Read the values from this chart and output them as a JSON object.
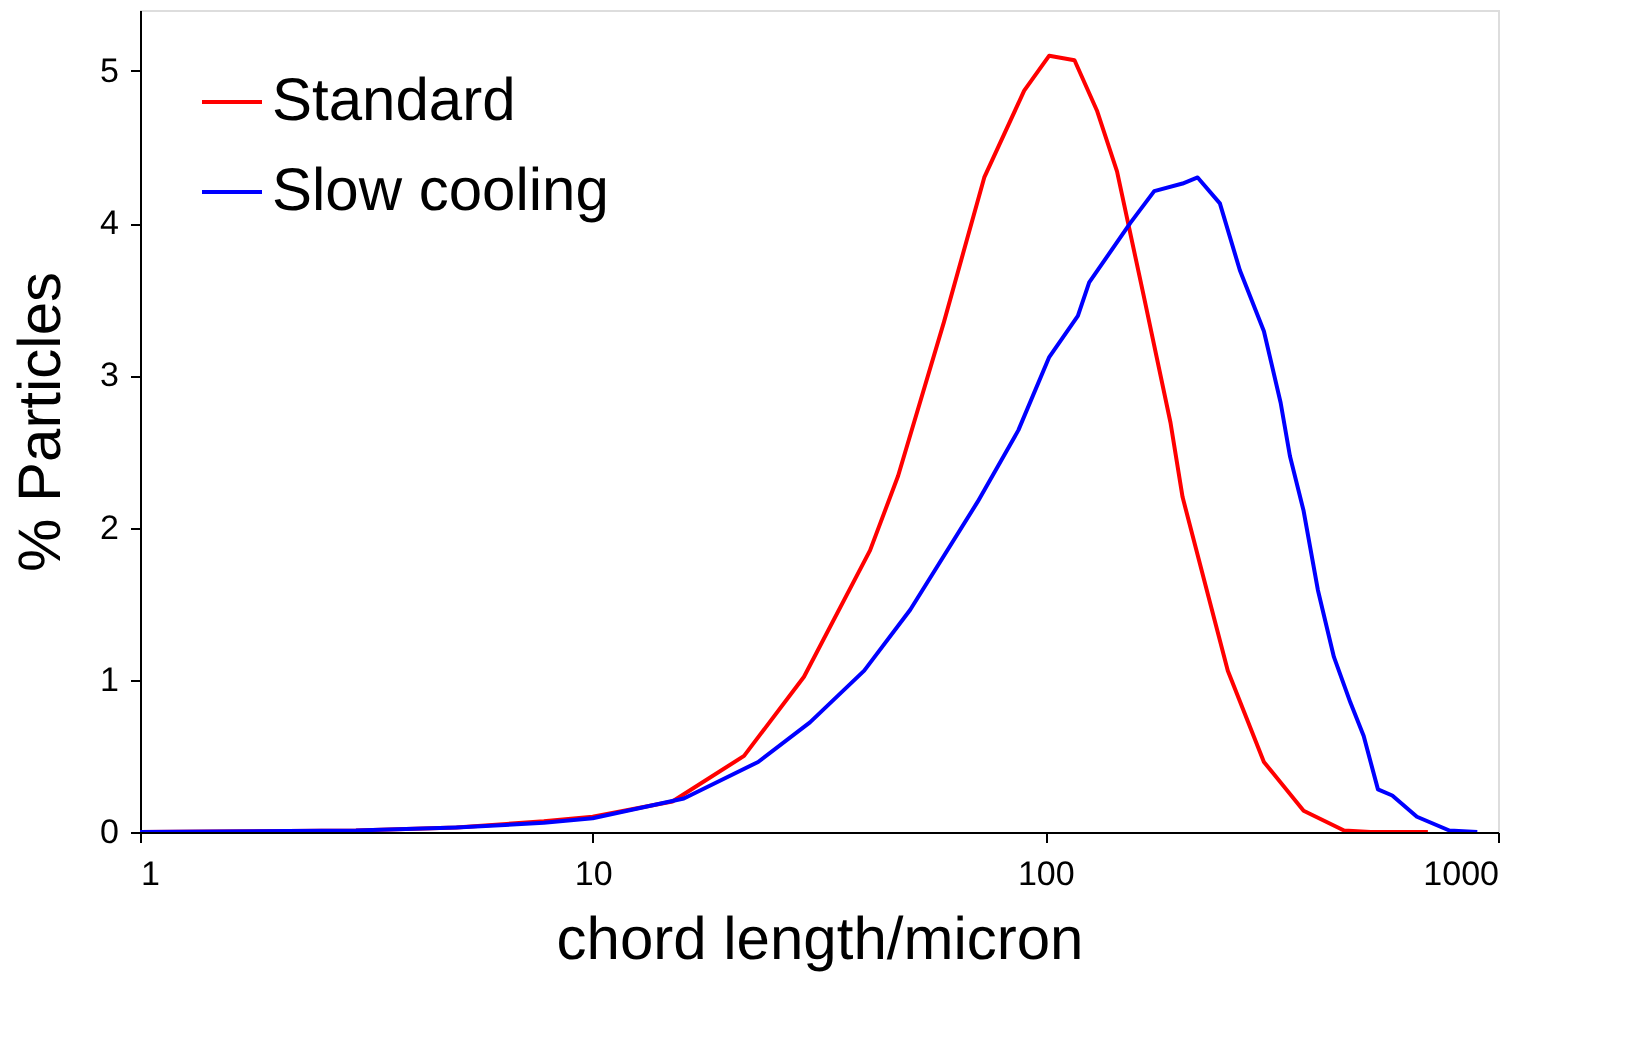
{
  "chart_data": {
    "type": "line",
    "xlabel": "chord length/micron",
    "ylabel": "% Particles",
    "log": "x",
    "xlim": [
      1,
      1000
    ],
    "xticks": [
      1,
      10,
      100,
      1000
    ],
    "ylim": [
      0,
      5.4
    ],
    "yticks": [
      0,
      1,
      2,
      3,
      4,
      5
    ],
    "grid": false,
    "legend": "top left",
    "marker": "none",
    "line_style": "solid",
    "series": [
      {
        "name": "Standard",
        "color": "#ff0000",
        "x": [
          1,
          3,
          5,
          7.8,
          10,
          15,
          21.6,
          29.3,
          41,
          47.3,
          59.7,
          73.3,
          89.8,
          102,
          116,
          130,
          144,
          165,
          189,
          201,
          231,
          253,
          304,
          372,
          457,
          523,
          700
        ],
        "values": [
          0,
          0.01,
          0.03,
          0.07,
          0.1,
          0.2,
          0.5,
          1.02,
          1.85,
          2.34,
          3.35,
          4.3,
          4.87,
          5.1,
          5.07,
          4.74,
          4.34,
          3.52,
          2.69,
          2.2,
          1.51,
          1.06,
          0.46,
          0.14,
          0.01,
          0,
          0
        ]
      },
      {
        "name": "Slow cooling",
        "color": "#0000ff",
        "x": [
          1,
          3,
          5,
          7.8,
          10,
          15.9,
          23.2,
          30.2,
          39.8,
          50.3,
          70.9,
          87.2,
          102,
          118,
          125,
          154,
          174,
          201,
          217,
          243,
          269,
          304,
          331,
          347,
          372,
          400,
          434,
          472,
          505,
          543,
          584,
          662,
          781,
          900
        ],
        "values": [
          0,
          0.01,
          0.03,
          0.06,
          0.09,
          0.22,
          0.46,
          0.72,
          1.06,
          1.46,
          2.17,
          2.64,
          3.12,
          3.39,
          3.61,
          4.0,
          4.21,
          4.26,
          4.3,
          4.13,
          3.69,
          3.29,
          2.82,
          2.47,
          2.11,
          1.59,
          1.15,
          0.85,
          0.63,
          0.28,
          0.24,
          0.1,
          0.01,
          0
        ]
      }
    ]
  }
}
